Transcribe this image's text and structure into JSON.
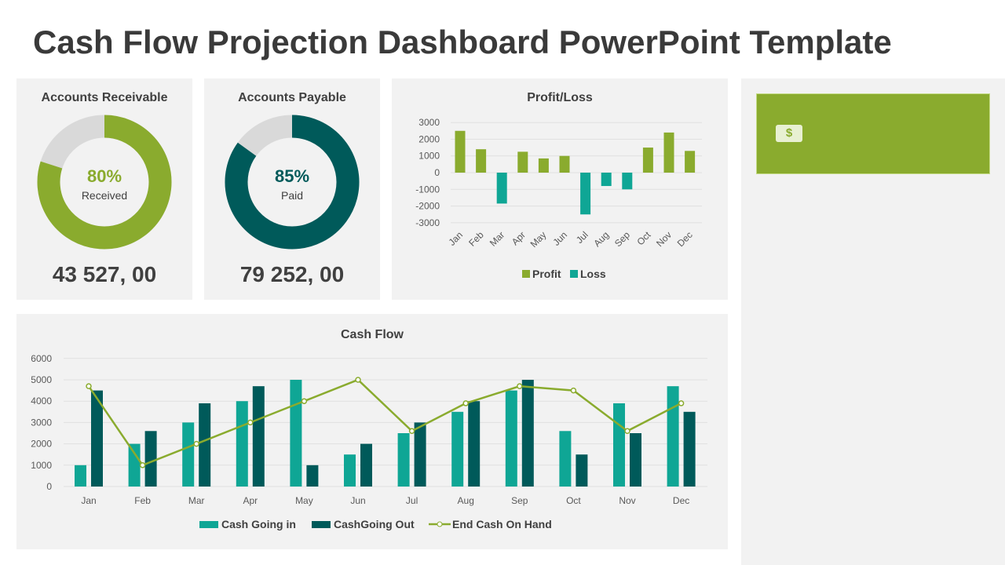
{
  "title": "Cash Flow Projection Dashboard PowerPoint Template",
  "colors": {
    "green": "#8aab2e",
    "teal": "#0fa695",
    "dark_teal": "#005a5a",
    "gray": "#d9d9d9"
  },
  "receivable": {
    "title": "Accounts Receivable",
    "percent": "80%",
    "percent_value": 80,
    "label": "Received",
    "amount": "43 527, 00"
  },
  "payable": {
    "title": "Accounts Payable",
    "percent": "85%",
    "percent_value": 85,
    "label": "Paid",
    "amount": "79 252, 00"
  },
  "side": {
    "icon": "dollar-bill-icon",
    "icon_text": "$"
  },
  "chart_data": [
    {
      "type": "bar",
      "title": "Profit/Loss",
      "categories": [
        "Jan",
        "Feb",
        "Mar",
        "Apr",
        "May",
        "Jun",
        "Jul",
        "Aug",
        "Sep",
        "Oct",
        "Nov",
        "Dec"
      ],
      "values": [
        2500,
        1400,
        -1850,
        1250,
        850,
        1000,
        -2500,
        -800,
        -1000,
        1500,
        2400,
        1300
      ],
      "yticks": [
        3000,
        2000,
        1000,
        0,
        -1000,
        -2000,
        -3000
      ],
      "ylim": [
        -3000,
        3000
      ],
      "legend": [
        "Profit",
        "Loss"
      ],
      "legend_position": "bottom"
    },
    {
      "type": "bar",
      "title": "Cash Flow",
      "categories": [
        "Jan",
        "Feb",
        "Mar",
        "Apr",
        "May",
        "Jun",
        "Jul",
        "Aug",
        "Sep",
        "Oct",
        "Nov",
        "Dec"
      ],
      "series": [
        {
          "name": "Cash Going in",
          "type": "bar",
          "values": [
            1000,
            2000,
            3000,
            4000,
            5000,
            1500,
            2500,
            3500,
            4500,
            2600,
            3900,
            4700
          ]
        },
        {
          "name": "CashGoing Out",
          "type": "bar",
          "values": [
            4500,
            2600,
            3900,
            4700,
            1000,
            2000,
            3000,
            4000,
            5000,
            1500,
            2500,
            3500
          ]
        },
        {
          "name": "End Cash On Hand",
          "type": "line",
          "values": [
            4700,
            1000,
            2000,
            3000,
            4000,
            5000,
            2600,
            3900,
            4700,
            4500,
            2600,
            3900
          ]
        }
      ],
      "yticks": [
        6000,
        5000,
        4000,
        3000,
        2000,
        1000,
        0
      ],
      "ylim": [
        0,
        6000
      ],
      "legend_position": "bottom"
    }
  ]
}
